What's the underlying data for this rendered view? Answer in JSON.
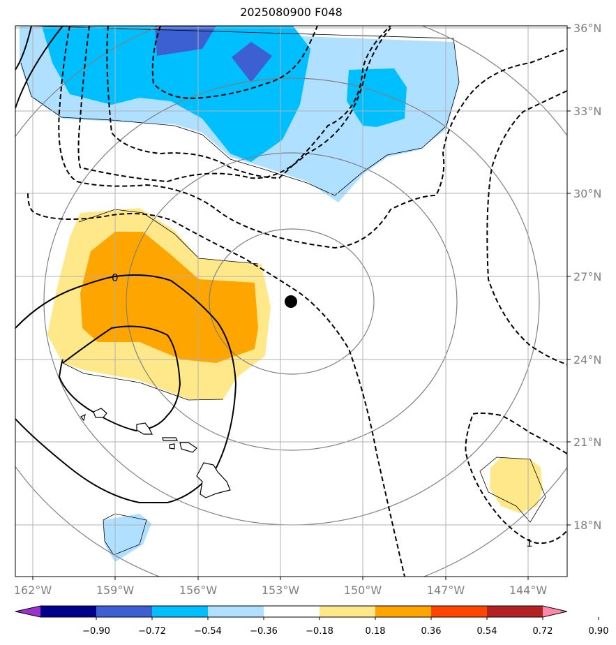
{
  "title": "2025080900 F048",
  "colors": {
    "grid": "#b0b0b0",
    "tick_label": "#7f7f7f",
    "contour_positive": "#000000",
    "contour_negative": "#000000",
    "circle": "#808080"
  },
  "lat_labels": [
    "36°N",
    "33°N",
    "30°N",
    "27°N",
    "24°N",
    "21°N",
    "18°N"
  ],
  "lon_labels": [
    "162°W",
    "159°W",
    "156°W",
    "153°W",
    "150°W",
    "147°W",
    "144°W"
  ],
  "contour_labels": [
    "0",
    "1"
  ],
  "colorbar": {
    "colors": [
      "#9932cc",
      "#00008b",
      "#3c5fd1",
      "#00bfff",
      "#b0e0ff",
      "#ffffff",
      "#ffe88a",
      "#ffa500",
      "#ff4500",
      "#b22222",
      "#ff88aa"
    ],
    "labels": [
      "−0.90",
      "−0.72",
      "−0.54",
      "−0.36",
      "−0.18",
      "0.18",
      "0.36",
      "0.54",
      "0.72",
      "0.90"
    ]
  },
  "storm_marker": {
    "lat": 26.1,
    "lon": -152.6
  }
}
